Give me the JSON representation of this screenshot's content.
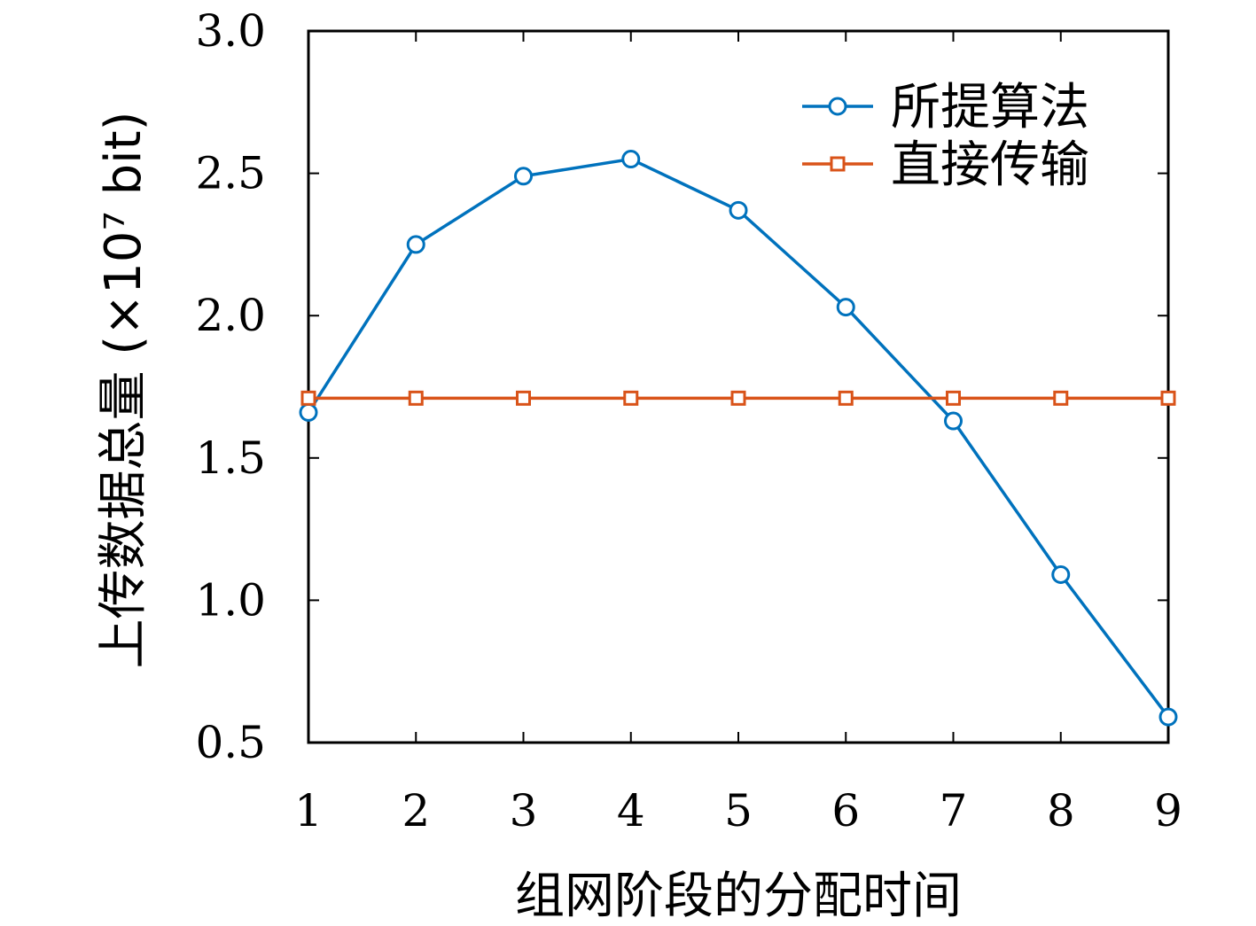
{
  "chart_data": {
    "type": "line",
    "x": [
      1,
      2,
      3,
      4,
      5,
      6,
      7,
      8,
      9
    ],
    "xlim": [
      1,
      9
    ],
    "ylim": [
      0.5,
      3.0
    ],
    "x_ticks": [
      "1",
      "2",
      "3",
      "4",
      "5",
      "6",
      "7",
      "8",
      "9"
    ],
    "y_ticks": [
      "0.5",
      "1.0",
      "1.5",
      "2.0",
      "2.5",
      "3.0"
    ],
    "xlabel": "组网阶段的分配时间",
    "ylabel": "上传数据总量 (×10⁷ bit)",
    "legend_position": "top-right",
    "grid": false,
    "series": [
      {
        "name": "所提算法",
        "color": "#0072BD",
        "marker": "circle",
        "values": [
          1.66,
          2.25,
          2.49,
          2.55,
          2.37,
          2.03,
          1.63,
          1.09,
          0.59
        ]
      },
      {
        "name": "直接传输",
        "color": "#D95319",
        "marker": "square",
        "values": [
          1.71,
          1.71,
          1.71,
          1.71,
          1.71,
          1.71,
          1.71,
          1.71,
          1.71
        ]
      }
    ]
  }
}
